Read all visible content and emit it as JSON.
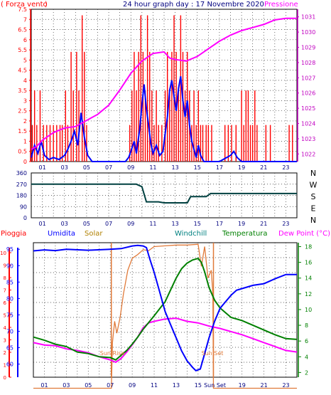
{
  "header": {
    "left": "Forza vento",
    "left_paren": "(",
    "left_close": ")",
    "center": "24 hour graph day : 17 Novembre 2020",
    "right": "Pressione"
  },
  "bottom_header": {
    "pioggia": "Pioggia",
    "umidita": "Umidita",
    "solar": "Solar",
    "windchill": "Windchill",
    "temperatura": "Temperatura",
    "dewpoint": "Dew Point (°C)"
  },
  "colors": {
    "wind": "#ff0000",
    "gust": "#0000ff",
    "pressure": "#ff00ff",
    "direction": "#004040",
    "humidity": "#0000ff",
    "solar": "#e07a3a",
    "temperature": "#008000",
    "dewpoint": "#ff00ff",
    "rain": "#ff0000",
    "axis_red": "#ff0000",
    "axis_magenta": "#c000c0",
    "axis_green": "#008000",
    "axis_blue": "#0000ff",
    "header_blue": "#000080",
    "solar_label": "#b08000",
    "windchill_label": "#008080"
  },
  "x_ticks": [
    "01",
    "03",
    "05",
    "07",
    "09",
    "11",
    "13",
    "15",
    "17",
    "19",
    "21",
    "23"
  ],
  "chart_data": [
    {
      "type": "bar",
      "name": "wind-chart",
      "ylabel_left": "Forza vento",
      "ylabel_right": "Pressione",
      "left_ticks": [
        "0",
        "0.5",
        "1",
        "1.5",
        "2",
        "2.5",
        "3",
        "3.5",
        "4",
        "4.5",
        "5",
        "5.5",
        "6",
        "6.5",
        "7",
        "7.5"
      ],
      "right_ticks": [
        "1022",
        "1023",
        "1024",
        "1025",
        "1026",
        "1027",
        "1028",
        "1029",
        "1030",
        "1031"
      ],
      "ylim": [
        0,
        7.5
      ],
      "ylim_right": [
        1021.5,
        1031.5
      ],
      "xlim": [
        0,
        24
      ],
      "wind_bars": [
        {
          "x": 0.1,
          "y": 1.8
        },
        {
          "x": 0.3,
          "y": 3.5
        },
        {
          "x": 0.5,
          "y": 1.8
        },
        {
          "x": 0.8,
          "y": 3.5
        },
        {
          "x": 1.1,
          "y": 1.8
        },
        {
          "x": 1.4,
          "y": 1.8
        },
        {
          "x": 1.7,
          "y": 1.8
        },
        {
          "x": 2.0,
          "y": 1.8
        },
        {
          "x": 2.3,
          "y": 1.8
        },
        {
          "x": 2.6,
          "y": 1.8
        },
        {
          "x": 2.8,
          "y": 1.8
        },
        {
          "x": 3.1,
          "y": 3.5
        },
        {
          "x": 3.3,
          "y": 1.8
        },
        {
          "x": 3.6,
          "y": 5.4
        },
        {
          "x": 3.8,
          "y": 3.5
        },
        {
          "x": 4.1,
          "y": 5.4
        },
        {
          "x": 4.3,
          "y": 3.5
        },
        {
          "x": 4.6,
          "y": 7.2
        },
        {
          "x": 4.8,
          "y": 5.4
        },
        {
          "x": 5.0,
          "y": 1.8
        },
        {
          "x": 8.9,
          "y": 1.8
        },
        {
          "x": 9.1,
          "y": 3.5
        },
        {
          "x": 9.3,
          "y": 5.4
        },
        {
          "x": 9.5,
          "y": 3.5
        },
        {
          "x": 9.7,
          "y": 5.4
        },
        {
          "x": 9.9,
          "y": 7.2
        },
        {
          "x": 10.1,
          "y": 5.4
        },
        {
          "x": 10.3,
          "y": 3.5
        },
        {
          "x": 10.5,
          "y": 7.2
        },
        {
          "x": 10.7,
          "y": 5.4
        },
        {
          "x": 10.9,
          "y": 3.5
        },
        {
          "x": 11.1,
          "y": 1.8
        },
        {
          "x": 11.3,
          "y": 3.5
        },
        {
          "x": 11.5,
          "y": 1.8
        },
        {
          "x": 11.8,
          "y": 1.8
        },
        {
          "x": 12.1,
          "y": 3.5
        },
        {
          "x": 12.3,
          "y": 5.4
        },
        {
          "x": 12.5,
          "y": 3.5
        },
        {
          "x": 12.7,
          "y": 5.4
        },
        {
          "x": 12.9,
          "y": 7.2
        },
        {
          "x": 13.1,
          "y": 5.4
        },
        {
          "x": 13.3,
          "y": 3.5
        },
        {
          "x": 13.5,
          "y": 7.2
        },
        {
          "x": 13.7,
          "y": 5.4
        },
        {
          "x": 13.9,
          "y": 3.5
        },
        {
          "x": 14.1,
          "y": 5.4
        },
        {
          "x": 14.3,
          "y": 3.5
        },
        {
          "x": 14.5,
          "y": 1.8
        },
        {
          "x": 14.7,
          "y": 3.5
        },
        {
          "x": 14.9,
          "y": 1.8
        },
        {
          "x": 15.1,
          "y": 3.5
        },
        {
          "x": 15.3,
          "y": 1.8
        },
        {
          "x": 15.5,
          "y": 1.8
        },
        {
          "x": 15.8,
          "y": 1.8
        },
        {
          "x": 16.0,
          "y": 1.8
        },
        {
          "x": 16.3,
          "y": 1.8
        },
        {
          "x": 17.5,
          "y": 1.8
        },
        {
          "x": 17.8,
          "y": 1.8
        },
        {
          "x": 18.1,
          "y": 1.8
        },
        {
          "x": 18.5,
          "y": 1.8
        },
        {
          "x": 19.0,
          "y": 3.5
        },
        {
          "x": 19.2,
          "y": 1.8
        },
        {
          "x": 19.4,
          "y": 3.5
        },
        {
          "x": 19.6,
          "y": 3.5
        },
        {
          "x": 19.8,
          "y": 1.8
        },
        {
          "x": 20.0,
          "y": 1.8
        },
        {
          "x": 20.2,
          "y": 3.5
        },
        {
          "x": 20.4,
          "y": 1.8
        },
        {
          "x": 21.2,
          "y": 1.8
        },
        {
          "x": 21.6,
          "y": 1.8
        },
        {
          "x": 23.3,
          "y": 1.8
        },
        {
          "x": 23.6,
          "y": 1.8
        }
      ],
      "gust_line": [
        [
          0,
          0.2
        ],
        [
          0.3,
          0.8
        ],
        [
          0.6,
          0.4
        ],
        [
          0.9,
          1.0
        ],
        [
          1.2,
          0.3
        ],
        [
          1.6,
          0.1
        ],
        [
          2.0,
          0.2
        ],
        [
          2.5,
          0.1
        ],
        [
          3.0,
          0.3
        ],
        [
          3.3,
          0.6
        ],
        [
          3.6,
          1.0
        ],
        [
          3.9,
          1.5
        ],
        [
          4.2,
          0.8
        ],
        [
          4.5,
          2.4
        ],
        [
          4.8,
          1.2
        ],
        [
          5.1,
          0.3
        ],
        [
          5.5,
          0
        ],
        [
          8.5,
          0
        ],
        [
          8.8,
          0.2
        ],
        [
          9.0,
          0.5
        ],
        [
          9.3,
          1.0
        ],
        [
          9.5,
          0.4
        ],
        [
          9.8,
          1.6
        ],
        [
          10.0,
          2.8
        ],
        [
          10.2,
          3.8
        ],
        [
          10.4,
          2.6
        ],
        [
          10.6,
          1.8
        ],
        [
          10.8,
          0.9
        ],
        [
          11.0,
          0.4
        ],
        [
          11.3,
          0.8
        ],
        [
          11.6,
          0.3
        ],
        [
          11.9,
          0.5
        ],
        [
          12.1,
          1.4
        ],
        [
          12.3,
          2.2
        ],
        [
          12.5,
          3.5
        ],
        [
          12.7,
          4.0
        ],
        [
          12.9,
          3.2
        ],
        [
          13.1,
          2.5
        ],
        [
          13.3,
          3.6
        ],
        [
          13.5,
          4.2
        ],
        [
          13.7,
          3.0
        ],
        [
          13.9,
          2.2
        ],
        [
          14.1,
          3.0
        ],
        [
          14.3,
          1.8
        ],
        [
          14.5,
          1.0
        ],
        [
          14.7,
          0.6
        ],
        [
          14.9,
          0.2
        ],
        [
          15.1,
          0.8
        ],
        [
          15.3,
          0.3
        ],
        [
          15.6,
          0
        ],
        [
          17.0,
          0
        ],
        [
          18.0,
          0.3
        ],
        [
          18.3,
          0.5
        ],
        [
          18.6,
          0.2
        ],
        [
          19.0,
          0
        ],
        [
          24,
          0
        ]
      ],
      "pressure_line": [
        [
          0,
          1022.3
        ],
        [
          0.5,
          1022.5
        ],
        [
          1,
          1022.9
        ],
        [
          2,
          1023.4
        ],
        [
          3,
          1023.7
        ],
        [
          4,
          1023.8
        ],
        [
          5,
          1024.2
        ],
        [
          6,
          1024.6
        ],
        [
          7,
          1025.2
        ],
        [
          8,
          1026.2
        ],
        [
          9,
          1027.3
        ],
        [
          10,
          1028.1
        ],
        [
          11,
          1028.6
        ],
        [
          12,
          1028.7
        ],
        [
          12.5,
          1028.3
        ],
        [
          13,
          1028.2
        ],
        [
          14,
          1028.1
        ],
        [
          15,
          1028.4
        ],
        [
          16,
          1028.9
        ],
        [
          17,
          1029.4
        ],
        [
          18,
          1029.8
        ],
        [
          19,
          1030.1
        ],
        [
          20,
          1030.3
        ],
        [
          21,
          1030.5
        ],
        [
          22,
          1030.8
        ],
        [
          23,
          1030.9
        ],
        [
          24,
          1030.9
        ]
      ]
    },
    {
      "type": "line",
      "name": "direction-chart",
      "left_ticks": [
        "0",
        "90",
        "180",
        "270",
        "360"
      ],
      "right_labels": [
        "N",
        "W",
        "S",
        "E",
        "N"
      ],
      "ylim": [
        0,
        360
      ],
      "xlim": [
        0,
        24
      ],
      "direction_line": [
        [
          0,
          270
        ],
        [
          9.5,
          270
        ],
        [
          10.0,
          250
        ],
        [
          10.4,
          128
        ],
        [
          11.5,
          128
        ],
        [
          12.0,
          120
        ],
        [
          13.5,
          120
        ],
        [
          14.1,
          120
        ],
        [
          14.4,
          170
        ],
        [
          15.8,
          170
        ],
        [
          16.2,
          195
        ],
        [
          24,
          195
        ]
      ]
    },
    {
      "type": "line",
      "name": "temperature-chart",
      "humidity_ticks": [
        "60",
        "65",
        "70",
        "75",
        "80",
        "85",
        "90",
        "95"
      ],
      "temperature_ticks": [
        "2",
        "4",
        "6",
        "8",
        "10",
        "12",
        "14",
        "16",
        "18"
      ],
      "rain_ticks": [
        "0",
        "1",
        "2",
        "3",
        "4",
        "5",
        "6",
        "7",
        "8",
        "9",
        "10"
      ],
      "ylim_humidity": [
        56,
        97
      ],
      "ylim_temperature": [
        1.4,
        18.5
      ],
      "xlim": [
        0,
        24
      ],
      "sunrise": 7.1,
      "sunset": 16.4,
      "sunrise_label": "Sun Rise",
      "sunset_label": "Sun Set",
      "sunset_axis_label": "Sun Set",
      "humidity_line": [
        [
          0,
          94.5
        ],
        [
          1,
          94.8
        ],
        [
          2,
          94.6
        ],
        [
          3,
          95.0
        ],
        [
          5,
          94.7
        ],
        [
          7,
          95.0
        ],
        [
          8,
          95.2
        ],
        [
          9,
          96.0
        ],
        [
          9.5,
          96.2
        ],
        [
          10,
          96.0
        ],
        [
          10.3,
          95.5
        ],
        [
          10.6,
          92
        ],
        [
          11,
          88
        ],
        [
          11.5,
          82
        ],
        [
          12,
          76
        ],
        [
          12.5,
          72
        ],
        [
          13,
          68
        ],
        [
          13.5,
          64
        ],
        [
          14,
          61
        ],
        [
          14.5,
          59
        ],
        [
          14.8,
          58
        ],
        [
          15.2,
          58.5
        ],
        [
          15.5,
          62
        ],
        [
          16,
          68
        ],
        [
          16.5,
          73
        ],
        [
          17,
          77
        ],
        [
          17.5,
          79
        ],
        [
          18,
          81
        ],
        [
          18.5,
          82.5
        ],
        [
          19,
          83
        ],
        [
          20,
          84
        ],
        [
          21,
          84.5
        ],
        [
          22,
          86
        ],
        [
          23,
          87.3
        ],
        [
          24,
          87.3
        ]
      ],
      "solar_line": [
        [
          0,
          0
        ],
        [
          7.1,
          0
        ],
        [
          7.2,
          5.8
        ],
        [
          7.4,
          8.5
        ],
        [
          7.6,
          7.0
        ],
        [
          7.9,
          9.0
        ],
        [
          8.2,
          12
        ],
        [
          8.6,
          15
        ],
        [
          9,
          16.5
        ],
        [
          9.5,
          17.0
        ],
        [
          10,
          17.6
        ],
        [
          10.5,
          17.5
        ],
        [
          11,
          18.0
        ],
        [
          12,
          18.1
        ],
        [
          13,
          18.2
        ],
        [
          14,
          18.2
        ],
        [
          15,
          18.3
        ],
        [
          15.3,
          15.5
        ],
        [
          15.6,
          18
        ],
        [
          15.9,
          14.0
        ],
        [
          16.2,
          15
        ],
        [
          16.35,
          12
        ],
        [
          16.4,
          0
        ],
        [
          24,
          0
        ]
      ],
      "temperature_line": [
        [
          0,
          6.5
        ],
        [
          1,
          6.1
        ],
        [
          2,
          5.6
        ],
        [
          3,
          5.3
        ],
        [
          4,
          4.6
        ],
        [
          5,
          4.4
        ],
        [
          6,
          4.0
        ],
        [
          7,
          3.9
        ],
        [
          7.5,
          3.6
        ],
        [
          8,
          4.2
        ],
        [
          8.5,
          4.8
        ],
        [
          9,
          5.6
        ],
        [
          9.5,
          6.5
        ],
        [
          10,
          7.5
        ],
        [
          11,
          9.2
        ],
        [
          12,
          11.0
        ],
        [
          12.5,
          12.5
        ],
        [
          13,
          14.0
        ],
        [
          13.5,
          15.2
        ],
        [
          14,
          15.9
        ],
        [
          14.5,
          16.3
        ],
        [
          15,
          16.5
        ],
        [
          15.3,
          16.0
        ],
        [
          15.6,
          14.8
        ],
        [
          16,
          12.8
        ],
        [
          16.5,
          11.2
        ],
        [
          17,
          10.2
        ],
        [
          17.5,
          9.6
        ],
        [
          18,
          9.0
        ],
        [
          19,
          8.6
        ],
        [
          20,
          8.0
        ],
        [
          21,
          7.4
        ],
        [
          22,
          6.8
        ],
        [
          23,
          6.3
        ],
        [
          24,
          6.2
        ]
      ],
      "dewpoint_line": [
        [
          0,
          5.8
        ],
        [
          1,
          5.5
        ],
        [
          2,
          5.4
        ],
        [
          3,
          5.0
        ],
        [
          4,
          4.8
        ],
        [
          5,
          4.5
        ],
        [
          6,
          4.0
        ],
        [
          7,
          3.6
        ],
        [
          7.5,
          3.3
        ],
        [
          8,
          3.8
        ],
        [
          8.5,
          4.6
        ],
        [
          9,
          5.5
        ],
        [
          9.5,
          6.5
        ],
        [
          10,
          7.7
        ],
        [
          10.5,
          8.3
        ],
        [
          11,
          8.5
        ],
        [
          12,
          8.8
        ],
        [
          13,
          8.9
        ],
        [
          14,
          8.5
        ],
        [
          15,
          8.3
        ],
        [
          16,
          7.9
        ],
        [
          17,
          7.6
        ],
        [
          18,
          7.2
        ],
        [
          19,
          6.8
        ],
        [
          20,
          6.3
        ],
        [
          21,
          5.8
        ],
        [
          22,
          5.3
        ],
        [
          23,
          4.8
        ],
        [
          24,
          4.6
        ]
      ]
    }
  ]
}
